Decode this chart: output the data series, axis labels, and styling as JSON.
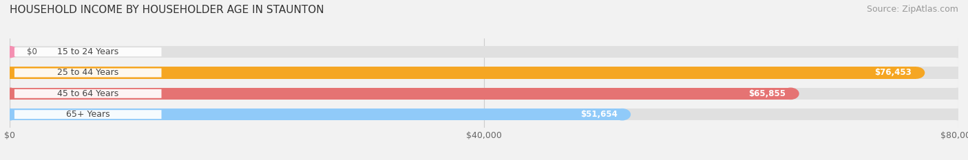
{
  "title": "HOUSEHOLD INCOME BY HOUSEHOLDER AGE IN STAUNTON",
  "source": "Source: ZipAtlas.com",
  "categories": [
    "15 to 24 Years",
    "25 to 44 Years",
    "45 to 64 Years",
    "65+ Years"
  ],
  "values": [
    0,
    76453,
    65855,
    51654
  ],
  "bar_colors": [
    "#f48fb1",
    "#f5a623",
    "#e57373",
    "#90caf9"
  ],
  "value_labels": [
    "$0",
    "$76,453",
    "$65,855",
    "$51,654"
  ],
  "xlim": [
    0,
    80000
  ],
  "xtick_labels": [
    "$0",
    "$40,000",
    "$80,000"
  ],
  "xtick_vals": [
    0,
    40000,
    80000
  ],
  "background_color": "#f2f2f2",
  "bar_background_color": "#e0e0e0",
  "title_fontsize": 11,
  "source_fontsize": 9,
  "bar_height": 0.58
}
